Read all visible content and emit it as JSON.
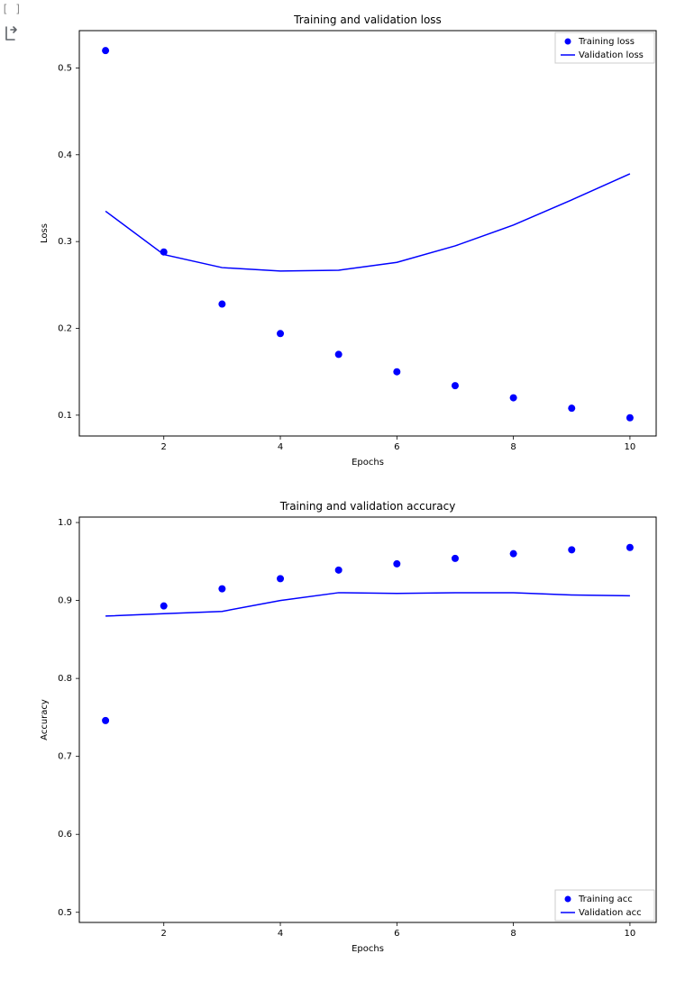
{
  "cell_marker": "[ ]",
  "loss_chart": {
    "type": "scatter+line",
    "title": "Training and validation loss",
    "xlabel": "Epochs",
    "ylabel": "Loss",
    "title_fontsize": 12,
    "label_fontsize": 10,
    "tick_fontsize": 10,
    "xlim": [
      0.55,
      10.45
    ],
    "ylim": [
      0.076,
      0.543
    ],
    "xticks": [
      2,
      4,
      6,
      8,
      10
    ],
    "yticks": [
      0.1,
      0.2,
      0.3,
      0.4,
      0.5
    ],
    "xtick_labels": [
      "2",
      "4",
      "6",
      "8",
      "10"
    ],
    "ytick_labels": [
      "0.1",
      "0.2",
      "0.3",
      "0.4",
      "0.5"
    ],
    "series_scatter": {
      "label": "Training loss",
      "color": "#0000ff",
      "marker_radius": 4,
      "x": [
        1,
        2,
        3,
        4,
        5,
        6,
        7,
        8,
        9,
        10
      ],
      "y": [
        0.52,
        0.288,
        0.228,
        0.194,
        0.17,
        0.15,
        0.134,
        0.12,
        0.108,
        0.097
      ]
    },
    "series_line": {
      "label": "Validation loss",
      "color": "#0000ff",
      "line_width": 1.5,
      "x": [
        1,
        2,
        3,
        4,
        5,
        6,
        7,
        8,
        9,
        10
      ],
      "y": [
        0.335,
        0.285,
        0.27,
        0.266,
        0.267,
        0.276,
        0.295,
        0.319,
        0.348,
        0.378
      ]
    },
    "legend_position": "upper-right",
    "background_color": "#ffffff",
    "border_color": "#000000"
  },
  "acc_chart": {
    "type": "scatter+line",
    "title": "Training and validation accuracy",
    "xlabel": "Epochs",
    "ylabel": "Accuracy",
    "title_fontsize": 12,
    "label_fontsize": 10,
    "tick_fontsize": 10,
    "xlim": [
      0.55,
      10.45
    ],
    "ylim": [
      0.487,
      1.007
    ],
    "xticks": [
      2,
      4,
      6,
      8,
      10
    ],
    "yticks": [
      0.5,
      0.6,
      0.7,
      0.8,
      0.9,
      1.0
    ],
    "xtick_labels": [
      "2",
      "4",
      "6",
      "8",
      "10"
    ],
    "ytick_labels": [
      "0.5",
      "0.6",
      "0.7",
      "0.8",
      "0.9",
      "1.0"
    ],
    "series_scatter": {
      "label": "Training acc",
      "color": "#0000ff",
      "marker_radius": 4,
      "x": [
        1,
        2,
        3,
        4,
        5,
        6,
        7,
        8,
        9,
        10
      ],
      "y": [
        0.746,
        0.893,
        0.915,
        0.928,
        0.939,
        0.947,
        0.954,
        0.96,
        0.965,
        0.968
      ]
    },
    "series_line": {
      "label": "Validation acc",
      "color": "#0000ff",
      "line_width": 1.5,
      "x": [
        1,
        2,
        3,
        4,
        5,
        6,
        7,
        8,
        9,
        10
      ],
      "y": [
        0.88,
        0.883,
        0.886,
        0.9,
        0.91,
        0.909,
        0.91,
        0.91,
        0.907,
        0.906
      ]
    },
    "legend_position": "lower-right",
    "background_color": "#ffffff",
    "border_color": "#000000"
  }
}
